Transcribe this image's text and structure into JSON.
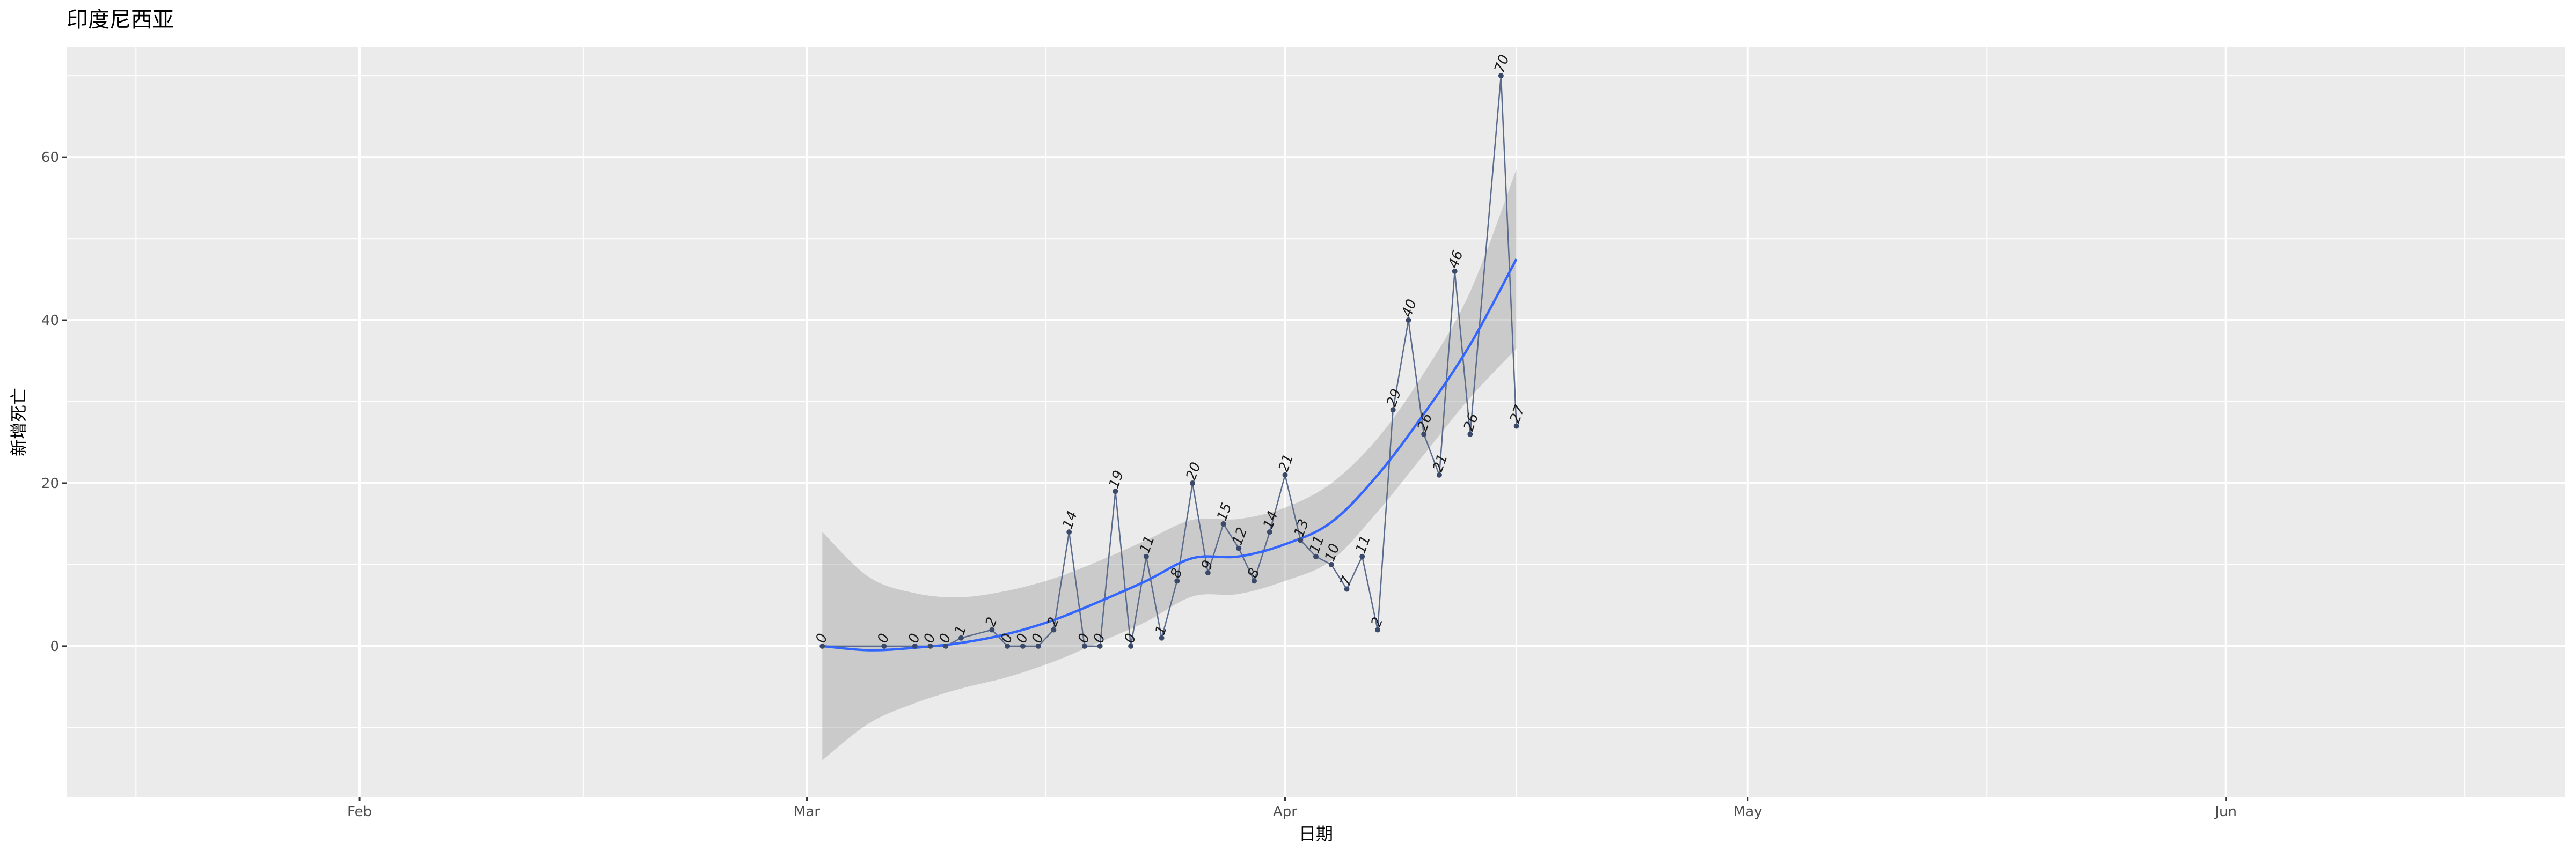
{
  "chart_data": {
    "type": "line",
    "title": "印度尼西亚",
    "xlabel": "日期",
    "ylabel": "新增死亡",
    "grid": true,
    "legend": "none",
    "colors": {
      "panel": "#ebebeb",
      "grid": "#ffffff",
      "line": "#5b6b8c",
      "point": "#3b4a6b",
      "smooth": "#3366ff",
      "ribbon": "#999999"
    },
    "xlim": [
      "2020-01-13",
      "2020-06-23"
    ],
    "ylim": [
      -18.5,
      73.5
    ],
    "x_ticks": [
      {
        "date": "2020-02-01",
        "label": "Feb"
      },
      {
        "date": "2020-03-01",
        "label": "Mar"
      },
      {
        "date": "2020-04-01",
        "label": "Apr"
      },
      {
        "date": "2020-05-01",
        "label": "May"
      },
      {
        "date": "2020-06-01",
        "label": "Jun"
      }
    ],
    "y_ticks": [
      0,
      20,
      40,
      60
    ],
    "series": [
      {
        "values": [
          {
            "date": "2020-03-02",
            "y": 0
          },
          {
            "date": "2020-03-06",
            "y": 0
          },
          {
            "date": "2020-03-08",
            "y": 0
          },
          {
            "date": "2020-03-09",
            "y": 0
          },
          {
            "date": "2020-03-10",
            "y": 0
          },
          {
            "date": "2020-03-11",
            "y": 1
          },
          {
            "date": "2020-03-13",
            "y": 2
          },
          {
            "date": "2020-03-14",
            "y": 0
          },
          {
            "date": "2020-03-15",
            "y": 0
          },
          {
            "date": "2020-03-16",
            "y": 0
          },
          {
            "date": "2020-03-17",
            "y": 2
          },
          {
            "date": "2020-03-18",
            "y": 14
          },
          {
            "date": "2020-03-19",
            "y": 0
          },
          {
            "date": "2020-03-20",
            "y": 0
          },
          {
            "date": "2020-03-21",
            "y": 19
          },
          {
            "date": "2020-03-22",
            "y": 0
          },
          {
            "date": "2020-03-23",
            "y": 11
          },
          {
            "date": "2020-03-24",
            "y": 1
          },
          {
            "date": "2020-03-25",
            "y": 8
          },
          {
            "date": "2020-03-26",
            "y": 20
          },
          {
            "date": "2020-03-27",
            "y": 9
          },
          {
            "date": "2020-03-28",
            "y": 15
          },
          {
            "date": "2020-03-29",
            "y": 12
          },
          {
            "date": "2020-03-30",
            "y": 8
          },
          {
            "date": "2020-03-31",
            "y": 14
          },
          {
            "date": "2020-04-01",
            "y": 21
          },
          {
            "date": "2020-04-02",
            "y": 13
          },
          {
            "date": "2020-04-03",
            "y": 11
          },
          {
            "date": "2020-04-04",
            "y": 10
          },
          {
            "date": "2020-04-05",
            "y": 7
          },
          {
            "date": "2020-04-06",
            "y": 11
          },
          {
            "date": "2020-04-07",
            "y": 2
          },
          {
            "date": "2020-04-08",
            "y": 29
          },
          {
            "date": "2020-04-09",
            "y": 40
          },
          {
            "date": "2020-04-10",
            "y": 26
          },
          {
            "date": "2020-04-11",
            "y": 21
          },
          {
            "date": "2020-04-12",
            "y": 46
          },
          {
            "date": "2020-04-13",
            "y": 26
          },
          {
            "date": "2020-04-15",
            "y": 70
          },
          {
            "date": "2020-04-16",
            "y": 27
          }
        ]
      }
    ],
    "smooth": {
      "values": [
        {
          "date": "2020-03-02",
          "y": 0.0
        },
        {
          "date": "2020-03-05",
          "y": -0.5
        },
        {
          "date": "2020-03-08",
          "y": -0.2
        },
        {
          "date": "2020-03-11",
          "y": 0.4
        },
        {
          "date": "2020-03-14",
          "y": 1.5
        },
        {
          "date": "2020-03-17",
          "y": 3.2
        },
        {
          "date": "2020-03-20",
          "y": 5.5
        },
        {
          "date": "2020-03-23",
          "y": 8.0
        },
        {
          "date": "2020-03-26",
          "y": 10.8
        },
        {
          "date": "2020-03-29",
          "y": 11.0
        },
        {
          "date": "2020-04-01",
          "y": 12.5
        },
        {
          "date": "2020-04-04",
          "y": 15.2
        },
        {
          "date": "2020-04-07",
          "y": 21.0
        },
        {
          "date": "2020-04-10",
          "y": 28.5
        },
        {
          "date": "2020-04-13",
          "y": 37.0
        },
        {
          "date": "2020-04-16",
          "y": 47.5
        }
      ],
      "upper": [
        14,
        8.5,
        6.5,
        6.0,
        6.8,
        8.3,
        10.5,
        13.0,
        15.5,
        15.6,
        17.0,
        20.0,
        25.5,
        33.5,
        43.5,
        58.5
      ],
      "lower": [
        -14,
        -9.5,
        -7.0,
        -5.2,
        -3.8,
        -1.9,
        0.5,
        3.0,
        6.1,
        6.4,
        8.0,
        10.5,
        16.5,
        23.5,
        30.5,
        36.5
      ]
    }
  }
}
